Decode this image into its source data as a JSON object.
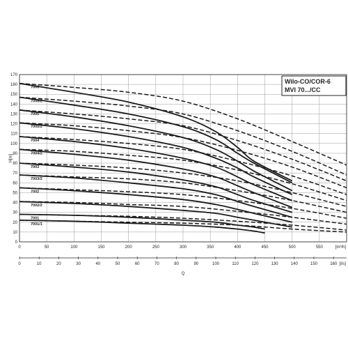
{
  "chart_data": {
    "type": "line",
    "title": "Wilo-CO/COR-6",
    "subtitle": "MVI 70.../CC",
    "ylabel": "H[m]",
    "xlabel": "Q",
    "x_unit_top": "[m³/h]",
    "x_unit_bottom": "[l/s]",
    "xlim": [
      0,
      600
    ],
    "ylim": [
      0,
      170
    ],
    "x_ticks": [
      0,
      50,
      100,
      150,
      200,
      250,
      300,
      350,
      400,
      450,
      500,
      550
    ],
    "y_ticks": [
      0,
      10,
      20,
      30,
      40,
      50,
      60,
      70,
      80,
      90,
      100,
      110,
      120,
      130,
      140,
      150,
      160,
      170
    ],
    "x2_ticks": [
      0,
      10,
      20,
      30,
      40,
      50,
      60,
      70,
      80,
      90,
      100,
      110,
      120,
      130,
      140,
      150,
      160
    ],
    "grid": true,
    "colors": {
      "line": "#1a1a1a",
      "grid": "#9a9a9a",
      "frame": "#222222"
    },
    "series": [
      {
        "name": "7006",
        "solid": [
          [
            0,
            161
          ],
          [
            100,
            152
          ],
          [
            200,
            142
          ],
          [
            300,
            127
          ],
          [
            360,
            112
          ],
          [
            400,
            96
          ],
          [
            430,
            82
          ],
          [
            500,
            62
          ]
        ],
        "dashed": [
          [
            0,
            161
          ],
          [
            100,
            157
          ],
          [
            200,
            152
          ],
          [
            300,
            143
          ],
          [
            400,
            125
          ],
          [
            500,
            102
          ],
          [
            600,
            78
          ]
        ]
      },
      {
        "name": "7006/2",
        "solid": [
          [
            0,
            147
          ],
          [
            100,
            139
          ],
          [
            200,
            130
          ],
          [
            300,
            117
          ],
          [
            360,
            104
          ],
          [
            400,
            90
          ],
          [
            430,
            80
          ],
          [
            500,
            60
          ]
        ],
        "dashed": [
          [
            0,
            147
          ],
          [
            100,
            143
          ],
          [
            200,
            138
          ],
          [
            300,
            130
          ],
          [
            400,
            113
          ],
          [
            500,
            92
          ],
          [
            600,
            68
          ]
        ]
      },
      {
        "name": "7005",
        "solid": [
          [
            0,
            134
          ],
          [
            100,
            127
          ],
          [
            200,
            118
          ],
          [
            300,
            106
          ],
          [
            360,
            94
          ],
          [
            400,
            82
          ],
          [
            430,
            72
          ],
          [
            500,
            52
          ]
        ],
        "dashed": [
          [
            0,
            134
          ],
          [
            100,
            130
          ],
          [
            200,
            125
          ],
          [
            300,
            118
          ],
          [
            400,
            103
          ],
          [
            500,
            84
          ],
          [
            600,
            62
          ]
        ]
      },
      {
        "name": "7005/2",
        "solid": [
          [
            0,
            121
          ],
          [
            100,
            115
          ],
          [
            200,
            107
          ],
          [
            300,
            96
          ],
          [
            360,
            85
          ],
          [
            400,
            75
          ],
          [
            430,
            66
          ],
          [
            500,
            48
          ]
        ],
        "dashed": [
          [
            0,
            121
          ],
          [
            100,
            118
          ],
          [
            200,
            113
          ],
          [
            300,
            106
          ],
          [
            400,
            93
          ],
          [
            500,
            76
          ],
          [
            600,
            55
          ]
        ]
      },
      {
        "name": "7004",
        "solid": [
          [
            0,
            107
          ],
          [
            100,
            102
          ],
          [
            200,
            95
          ],
          [
            300,
            85
          ],
          [
            360,
            76
          ],
          [
            400,
            66
          ],
          [
            430,
            58
          ],
          [
            500,
            42
          ]
        ],
        "dashed": [
          [
            0,
            107
          ],
          [
            100,
            104
          ],
          [
            200,
            100
          ],
          [
            300,
            94
          ],
          [
            400,
            82
          ],
          [
            500,
            67
          ],
          [
            600,
            48
          ]
        ]
      },
      {
        "name": "7004/2",
        "solid": [
          [
            0,
            94
          ],
          [
            100,
            89
          ],
          [
            200,
            83
          ],
          [
            300,
            74
          ],
          [
            360,
            66
          ],
          [
            400,
            57
          ],
          [
            430,
            50
          ],
          [
            500,
            35
          ]
        ],
        "dashed": [
          [
            0,
            94
          ],
          [
            100,
            92
          ],
          [
            200,
            88
          ],
          [
            300,
            83
          ],
          [
            400,
            73
          ],
          [
            500,
            59
          ],
          [
            600,
            42
          ]
        ]
      },
      {
        "name": "7003",
        "solid": [
          [
            0,
            80
          ],
          [
            100,
            76
          ],
          [
            200,
            71
          ],
          [
            300,
            63
          ],
          [
            360,
            56
          ],
          [
            400,
            48
          ],
          [
            430,
            42
          ],
          [
            500,
            30
          ]
        ],
        "dashed": [
          [
            0,
            80
          ],
          [
            100,
            78
          ],
          [
            200,
            75
          ],
          [
            300,
            70
          ],
          [
            400,
            62
          ],
          [
            500,
            50
          ],
          [
            600,
            36
          ]
        ]
      },
      {
        "name": "7003/2",
        "solid": [
          [
            0,
            68
          ],
          [
            100,
            65
          ],
          [
            200,
            60
          ],
          [
            300,
            54
          ],
          [
            360,
            48
          ],
          [
            400,
            41
          ],
          [
            430,
            36
          ],
          [
            500,
            25
          ]
        ],
        "dashed": [
          [
            0,
            68
          ],
          [
            100,
            66
          ],
          [
            200,
            64
          ],
          [
            300,
            60
          ],
          [
            400,
            52
          ],
          [
            500,
            42
          ],
          [
            600,
            30
          ]
        ]
      },
      {
        "name": "7002",
        "solid": [
          [
            0,
            55
          ],
          [
            100,
            52
          ],
          [
            200,
            48
          ],
          [
            300,
            43
          ],
          [
            360,
            38
          ],
          [
            400,
            33
          ],
          [
            430,
            29
          ],
          [
            500,
            20
          ]
        ],
        "dashed": [
          [
            0,
            55
          ],
          [
            100,
            53
          ],
          [
            200,
            51
          ],
          [
            300,
            48
          ],
          [
            400,
            42
          ],
          [
            500,
            34
          ],
          [
            600,
            24
          ]
        ]
      },
      {
        "name": "7002/2",
        "solid": [
          [
            0,
            41
          ],
          [
            100,
            39
          ],
          [
            200,
            36
          ],
          [
            300,
            32
          ],
          [
            360,
            29
          ],
          [
            400,
            25
          ],
          [
            430,
            22
          ],
          [
            500,
            15
          ]
        ],
        "dashed": [
          [
            0,
            41
          ],
          [
            100,
            40
          ],
          [
            200,
            38
          ],
          [
            300,
            36
          ],
          [
            400,
            31
          ],
          [
            500,
            25
          ],
          [
            600,
            18
          ]
        ]
      },
      {
        "name": "7001",
        "solid": [
          [
            0,
            28
          ],
          [
            100,
            27
          ],
          [
            200,
            25
          ],
          [
            300,
            22
          ],
          [
            360,
            20
          ],
          [
            400,
            17
          ],
          [
            430,
            15
          ],
          [
            450,
            13
          ]
        ],
        "dashed": [
          [
            0,
            28
          ],
          [
            100,
            27
          ],
          [
            200,
            26
          ],
          [
            300,
            24
          ],
          [
            400,
            21
          ],
          [
            500,
            17
          ],
          [
            600,
            12
          ]
        ]
      },
      {
        "name": "7001/1",
        "solid": [
          [
            0,
            22
          ],
          [
            100,
            21
          ],
          [
            200,
            19
          ],
          [
            300,
            17
          ],
          [
            360,
            15
          ],
          [
            400,
            13
          ],
          [
            430,
            11
          ],
          [
            450,
            9
          ]
        ],
        "dashed": [
          [
            0,
            22
          ],
          [
            100,
            21
          ],
          [
            200,
            20
          ],
          [
            300,
            19
          ],
          [
            400,
            17
          ],
          [
            500,
            13
          ],
          [
            600,
            10
          ]
        ]
      }
    ]
  }
}
